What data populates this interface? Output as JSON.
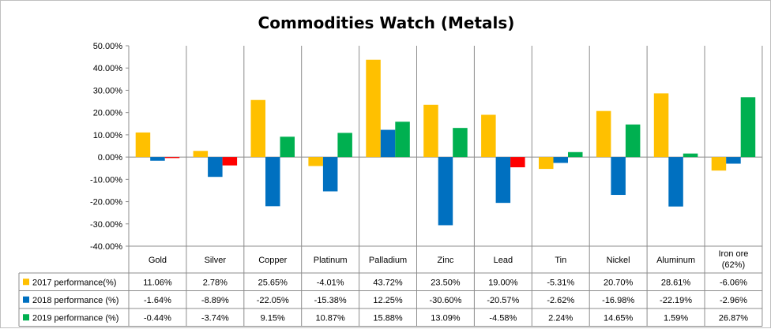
{
  "chart_data": {
    "type": "bar",
    "title": "Commodities Watch (Metals)",
    "categories": [
      "Gold",
      "Silver",
      "Copper",
      "Platinum",
      "Palladium",
      "Zinc",
      "Lead",
      "Tin",
      "Nickel",
      "Aluminum",
      "Iron ore (62%)"
    ],
    "series": [
      {
        "name": "2017 performance(%)",
        "color": "#FFC000",
        "values": [
          11.06,
          2.78,
          25.65,
          -4.01,
          43.72,
          23.5,
          19.0,
          -5.31,
          20.7,
          28.61,
          -6.06
        ],
        "labels": [
          "11.06%",
          "2.78%",
          "25.65%",
          "-4.01%",
          "43.72%",
          "23.50%",
          "19.00%",
          "-5.31%",
          "20.70%",
          "28.61%",
          "-6.06%"
        ]
      },
      {
        "name": "2018 performance (%)",
        "color": "#0070C0",
        "values": [
          -1.64,
          -8.89,
          -22.05,
          -15.38,
          12.25,
          -30.6,
          -20.57,
          -2.62,
          -16.98,
          -22.19,
          -2.96
        ],
        "labels": [
          "-1.64%",
          "-8.89%",
          "-22.05%",
          "-15.38%",
          "12.25%",
          "-30.60%",
          "-20.57%",
          "-2.62%",
          "-16.98%",
          "-22.19%",
          "-2.96%"
        ]
      },
      {
        "name": "2019 performance (%)",
        "color": "#00B050",
        "negative_color": "#FF0000",
        "values": [
          -0.44,
          -3.74,
          9.15,
          10.87,
          15.88,
          13.09,
          -4.58,
          2.24,
          14.65,
          1.59,
          26.87
        ],
        "labels": [
          "-0.44%",
          "-3.74%",
          "9.15%",
          "10.87%",
          "15.88%",
          "13.09%",
          "-4.58%",
          "2.24%",
          "14.65%",
          "1.59%",
          "26.87%"
        ]
      }
    ],
    "ylim": [
      -40,
      50
    ],
    "yticks": [
      50,
      40,
      30,
      20,
      10,
      0,
      -10,
      -20,
      -30,
      -40
    ],
    "ytick_labels": [
      "50.00%",
      "40.00%",
      "30.00%",
      "20.00%",
      "10.00%",
      "0.00%",
      "-10.00%",
      "-20.00%",
      "-30.00%",
      "-40.00%"
    ],
    "grid": false,
    "legend": "data-table"
  }
}
